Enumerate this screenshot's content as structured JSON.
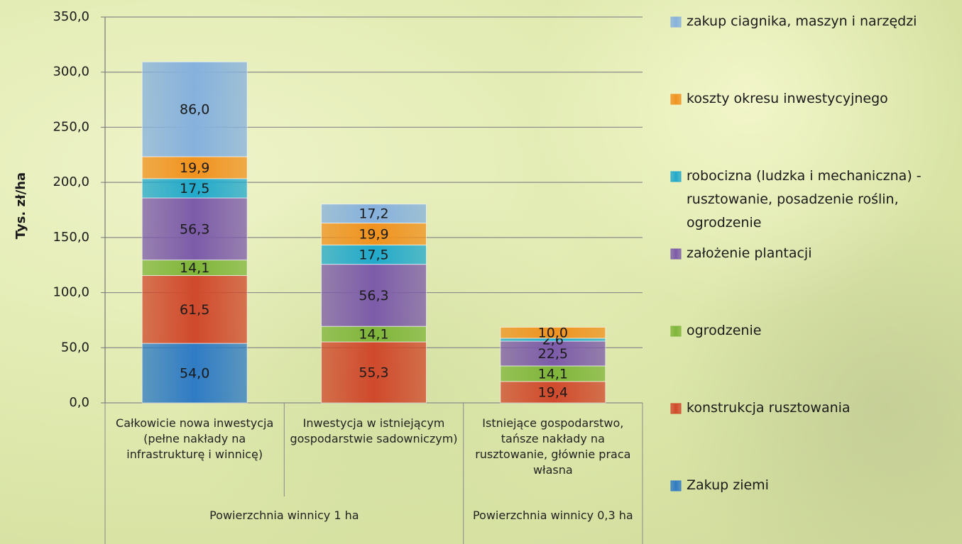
{
  "chart_data": {
    "type": "stacked_bar",
    "y_label": "Tys. zł/ha",
    "categories": [
      "Całkowicie nowa inwestycja (pełne nakłady na infrastrukturę i winnicę)",
      "Inwestycja w istniejącym gospodarstwie sadowniczym)",
      "Istniejące gospodarstwo, tańsze nakłady na rusztowanie, głównie praca własna"
    ],
    "category_groups": [
      "Powierzchnia winnicy 1 ha",
      null,
      "Powierzchnia winnicy 0,3 ha"
    ],
    "ylim": [
      0,
      350
    ],
    "yticks": [
      {
        "value": 0,
        "label": "0,0"
      },
      {
        "value": 50,
        "label": "50,0"
      },
      {
        "value": 100,
        "label": "100,0"
      },
      {
        "value": 150,
        "label": "150,0"
      },
      {
        "value": 200,
        "label": "200,0"
      },
      {
        "value": 250,
        "label": "250,0"
      },
      {
        "value": 300,
        "label": "300,0"
      },
      {
        "value": 350,
        "label": "350,0"
      }
    ],
    "grid": true,
    "legend_position": "right",
    "series": [
      {
        "name": "Zakup ziemi",
        "color": "#2f7bc4",
        "values": [
          54.0,
          null,
          null
        ],
        "value_labels": [
          "54,0",
          null,
          null
        ]
      },
      {
        "name": "konstrukcja rusztowania",
        "color": "#d0492c",
        "values": [
          61.5,
          55.3,
          19.4
        ],
        "value_labels": [
          "61,5",
          "55,3",
          "19,4"
        ]
      },
      {
        "name": "ogrodzenie",
        "color": "#7fb53a",
        "values": [
          14.1,
          14.1,
          14.1
        ],
        "value_labels": [
          "14,1",
          "14,1",
          "14,1"
        ]
      },
      {
        "name": "założenie plantacji",
        "color": "#7c5ba9",
        "values": [
          56.3,
          56.3,
          22.5
        ],
        "value_labels": [
          "56,3",
          "56,3",
          "22,5"
        ]
      },
      {
        "name": "robocizna (ludzka i mechaniczna) - rusztowanie, posadzenie roślin, ogrodzenie",
        "color": "#22a9cb",
        "values": [
          17.5,
          17.5,
          2.6
        ],
        "value_labels": [
          "17,5",
          "17,5",
          "2,6"
        ]
      },
      {
        "name": "koszty okresu inwestycyjnego",
        "color": "#f0921e",
        "values": [
          19.9,
          19.9,
          10.0
        ],
        "value_labels": [
          "19,9",
          "19,9",
          "10,0"
        ]
      },
      {
        "name": "zakup ciagnika, maszyn i narzędzi",
        "color": "#86b1dd",
        "values": [
          86.0,
          17.2,
          null
        ],
        "value_labels": [
          "86,0",
          "17,2",
          null
        ]
      }
    ]
  }
}
